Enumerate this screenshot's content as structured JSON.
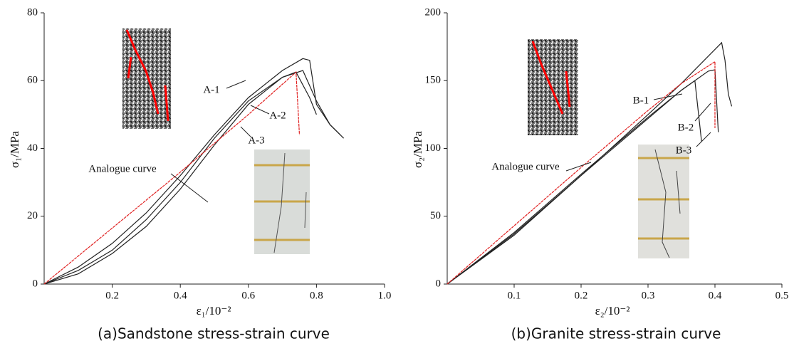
{
  "chart_data": [
    {
      "type": "line",
      "caption": "(a)Sandstone stress-strain curve",
      "xlabel": "ε₁/10⁻²",
      "ylabel": "σ₁/MPa",
      "xlim": [
        0,
        1
      ],
      "ylim": [
        0,
        80
      ],
      "xticks": [
        0.2,
        0.4,
        0.6,
        0.8,
        {
          "value": 1,
          "label": "1.0"
        }
      ],
      "yticks": [
        0,
        20,
        40,
        60,
        80
      ],
      "series": [
        {
          "name": "A-1",
          "color": "#222222",
          "x": [
            0,
            0.1,
            0.2,
            0.3,
            0.4,
            0.5,
            0.6,
            0.7,
            0.76,
            0.78,
            0.8,
            0.82,
            0.84,
            0.86,
            0.88
          ],
          "values": [
            0,
            5,
            12,
            21,
            32,
            44,
            55,
            63,
            66.5,
            66,
            53,
            50,
            47,
            45,
            43
          ]
        },
        {
          "name": "A-2",
          "color": "#222222",
          "x": [
            0,
            0.1,
            0.2,
            0.3,
            0.4,
            0.5,
            0.6,
            0.7,
            0.76,
            0.8,
            0.84,
            0.87
          ],
          "values": [
            0,
            4,
            10,
            19,
            30,
            43,
            54,
            61,
            63,
            54,
            47,
            44
          ]
        },
        {
          "name": "A-3",
          "color": "#222222",
          "x": [
            0,
            0.1,
            0.2,
            0.3,
            0.4,
            0.5,
            0.6,
            0.7,
            0.74,
            0.78,
            0.8
          ],
          "values": [
            0,
            3,
            9,
            17,
            28,
            41,
            53,
            61,
            62.5,
            55,
            50
          ]
        },
        {
          "name": "Analogue curve",
          "color": "#e02020",
          "x": [
            0,
            0.2,
            0.4,
            0.6,
            0.74,
            0.75
          ],
          "values": [
            0,
            16.5,
            33,
            50,
            62.5,
            44
          ]
        }
      ]
    },
    {
      "type": "line",
      "caption": "(b)Granite stress-strain curve",
      "xlabel": "ε₂/10⁻²",
      "ylabel": "σ₂/MPa",
      "xlim": [
        0,
        0.5
      ],
      "ylim": [
        0,
        200
      ],
      "xticks": [
        0.1,
        0.2,
        0.3,
        0.4,
        0.5
      ],
      "yticks": [
        0,
        50,
        100,
        150,
        200
      ],
      "series": [
        {
          "name": "B-1",
          "color": "#222222",
          "x": [
            0,
            0.1,
            0.2,
            0.3,
            0.35,
            0.4,
            0.41,
            0.415,
            0.42,
            0.425
          ],
          "values": [
            0,
            36,
            80,
            125,
            148,
            173,
            178,
            165,
            140,
            131
          ]
        },
        {
          "name": "B-2",
          "color": "#222222",
          "x": [
            0,
            0.1,
            0.2,
            0.3,
            0.35,
            0.39,
            0.4,
            0.405
          ],
          "values": [
            0,
            38,
            81,
            123,
            143,
            157,
            158,
            112
          ]
        },
        {
          "name": "B-3",
          "color": "#222222",
          "x": [
            0,
            0.1,
            0.2,
            0.3,
            0.35,
            0.37,
            0.38
          ],
          "values": [
            0,
            37,
            80,
            122,
            143,
            150,
            105
          ]
        },
        {
          "name": "Analogue curve",
          "color": "#e02020",
          "x": [
            0,
            0.1,
            0.2,
            0.3,
            0.35,
            0.4,
            0.4
          ],
          "values": [
            0,
            43,
            86,
            128,
            148,
            164,
            115
          ]
        }
      ]
    }
  ]
}
